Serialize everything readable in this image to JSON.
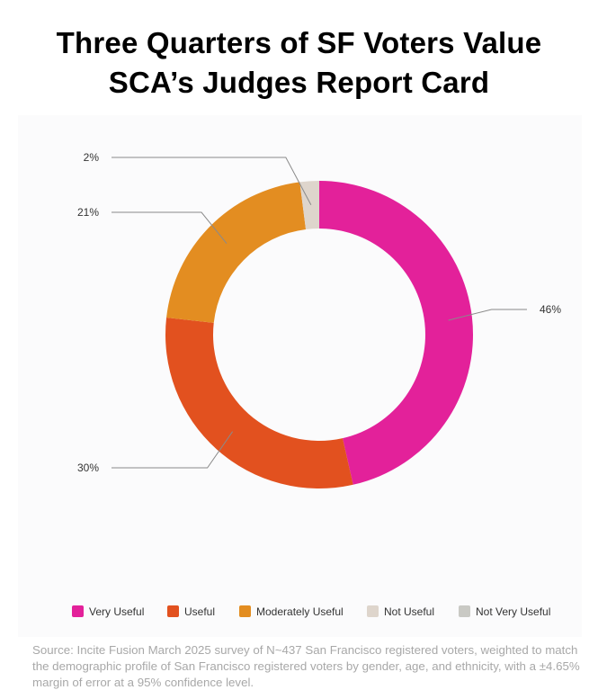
{
  "title": [
    "Three Quarters of SF Voters Value",
    "SCA’s Judges Report Card"
  ],
  "chart_data": {
    "type": "pie",
    "donut": true,
    "slices": [
      {
        "label": "Very Useful",
        "value": 46,
        "color": "#e3219a",
        "value_label": "46%"
      },
      {
        "label": "Useful",
        "value": 30,
        "color": "#e2511f",
        "value_label": "30%"
      },
      {
        "label": "Moderately Useful",
        "value": 21,
        "color": "#e38d21",
        "value_label": "21%"
      },
      {
        "label": "Not Useful",
        "value": 2,
        "color": "#ded5cc",
        "value_label": "2%"
      },
      {
        "label": "Not Very Useful",
        "value": 0,
        "color": "#c9c9c4",
        "value_label": ""
      }
    ],
    "legend_position": "bottom"
  },
  "source": "Source: Incite Fusion March 2025 survey of N~437 San Francisco registered voters, weighted to match the demographic profile of San Francisco registered voters by gender, age, and ethnicity, with a ±4.65% margin of error at a 95% confidence level."
}
